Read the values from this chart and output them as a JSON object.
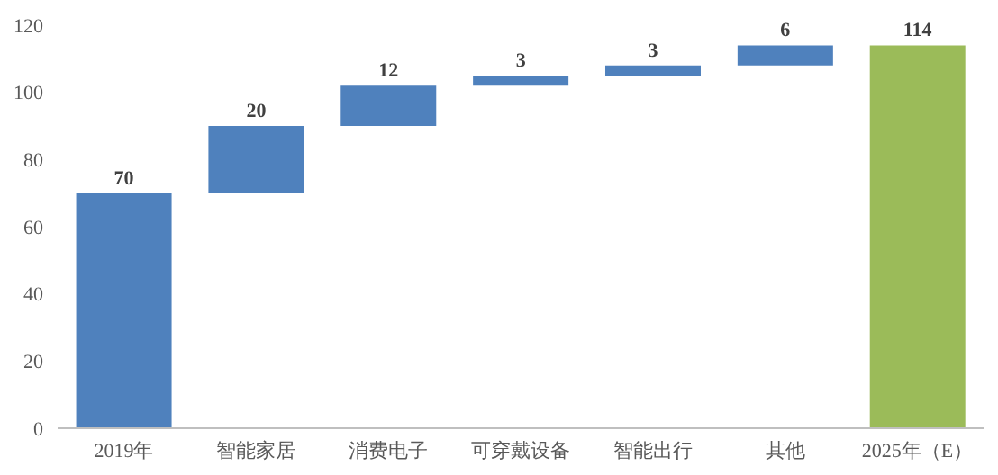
{
  "chart_data": {
    "type": "bar",
    "categories": [
      "2019年",
      "智能家居",
      "消费电子",
      "可穿戴设备",
      "智能出行",
      "其他",
      "2025年（E）"
    ],
    "values": [
      70,
      20,
      12,
      3,
      3,
      6,
      114
    ],
    "base": [
      0,
      70,
      90,
      102,
      105,
      108,
      0
    ],
    "colors": [
      "#4f81bd",
      "#4f81bd",
      "#4f81bd",
      "#4f81bd",
      "#4f81bd",
      "#4f81bd",
      "#9bbb59"
    ],
    "ylim": [
      0,
      120
    ],
    "yticks": [
      0,
      20,
      40,
      60,
      80,
      100,
      120
    ],
    "data_labels": true
  }
}
